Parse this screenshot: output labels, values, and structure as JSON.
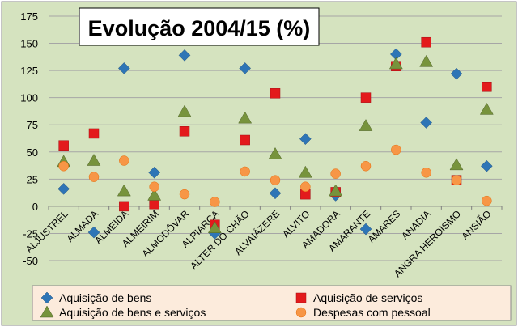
{
  "chart_data": {
    "type": "scatter",
    "title": "Evolução 2004/15 (%)",
    "xlabel": "",
    "ylabel": "",
    "ylim": [
      -50,
      175
    ],
    "yticks": [
      -50,
      -25,
      0,
      25,
      50,
      75,
      100,
      125,
      150,
      175
    ],
    "grid": "horizontal",
    "legend_position": "bottom",
    "categories": [
      "ALJUSTREL",
      "ALMADA",
      "ALMEIDA",
      "ALMEIRIM",
      "ALMODÔVAR",
      "ALPIARÇA",
      "ALTER DO CHÃO",
      "ALVAIÁZERE",
      "ALVITO",
      "AMADORA",
      "AMARANTE",
      "AMARES",
      "ANADIA",
      "ANGRA HEROISMO",
      "ANSIÃO"
    ],
    "series": [
      {
        "name": "Aquisição de bens",
        "marker": "diamond",
        "color": "#2E75B6",
        "values": [
          16,
          -24,
          127,
          31,
          139,
          -25,
          127,
          12,
          62,
          10,
          -21,
          140,
          77,
          122,
          37
        ]
      },
      {
        "name": "Aquisição de serviços",
        "marker": "square",
        "color": "#E31A1C",
        "values": [
          56,
          67,
          0,
          2,
          69,
          -17,
          61,
          104,
          11,
          13,
          100,
          129,
          151,
          24,
          110
        ]
      },
      {
        "name": "Aquisição de bens e serviços",
        "marker": "triangle",
        "color": "#77933C",
        "values": [
          41,
          42,
          14,
          10,
          87,
          -20,
          81,
          48,
          31,
          14,
          74,
          131,
          133,
          38,
          89
        ]
      },
      {
        "name": "Despesas com pessoal",
        "marker": "circle",
        "color": "#F79646",
        "values": [
          37,
          27,
          42,
          18,
          11,
          4,
          32,
          24,
          18,
          30,
          37,
          52,
          31,
          24,
          5
        ]
      }
    ]
  }
}
